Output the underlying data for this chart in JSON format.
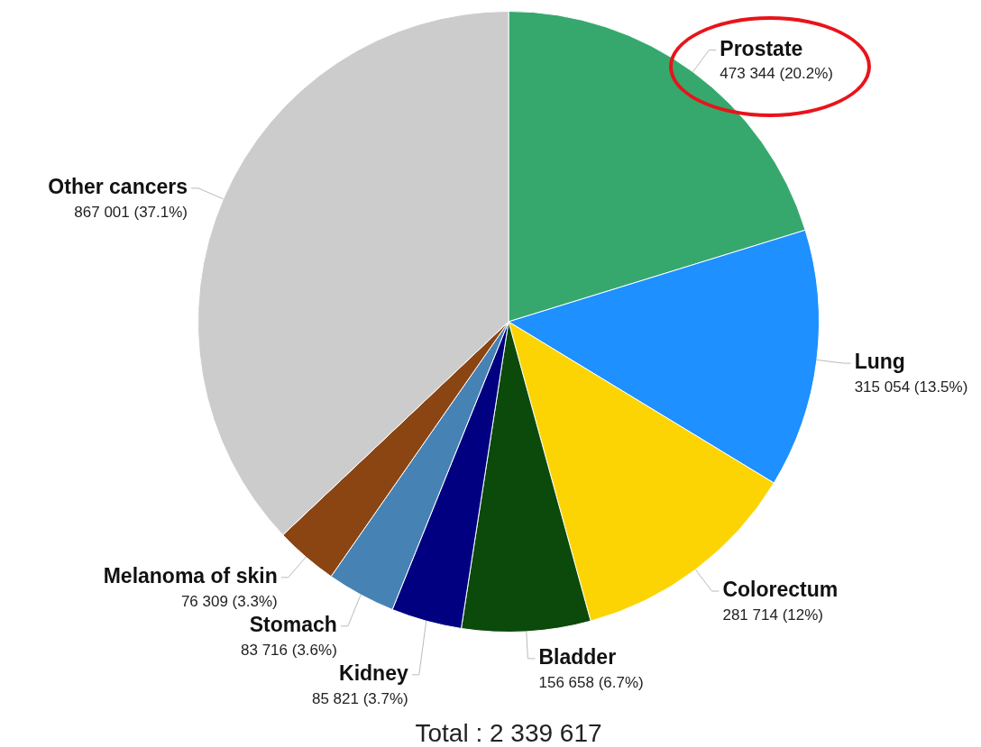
{
  "chart_data": {
    "type": "pie",
    "categories": [
      "Prostate",
      "Lung",
      "Colorectum",
      "Bladder",
      "Kidney",
      "Stomach",
      "Melanoma of skin",
      "Other cancers"
    ],
    "values": [
      473344,
      315054,
      281714,
      156658,
      85821,
      83716,
      76309,
      867001
    ],
    "colors": [
      "#36a86e",
      "#1e90ff",
      "#fcd404",
      "#0b4a0b",
      "#000080",
      "#4682b4",
      "#8b4513",
      "#cccccc"
    ],
    "value_labels": [
      "473 344 (20.2%)",
      "315 054 (13.5%)",
      "281 714 (12%)",
      "156 658 (6.7%)",
      "85 821 (3.7%)",
      "83 716 (3.6%)",
      "76 309 (3.3%)",
      "867 001 (37.1%)"
    ],
    "annotations": [
      "Total : 2 339 617"
    ]
  }
}
